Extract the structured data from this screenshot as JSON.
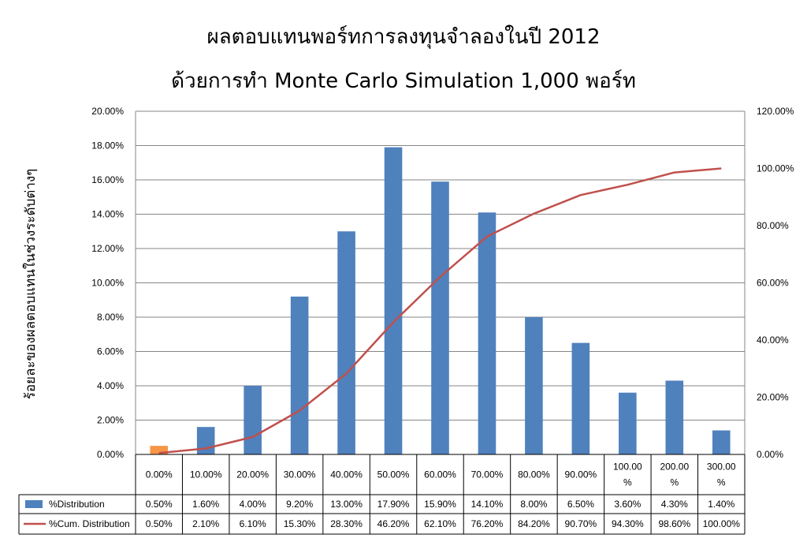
{
  "title_line1": "ผลตอบแทนพอร์ทการลงทุนจำลองในปี 2012",
  "title_line2": "ด้วยการทำ Monte Carlo Simulation 1,000 พอร์ท",
  "chart_data": {
    "type": "bar",
    "ylabel": "ร้อยละของผลตอบแทนในช่วงระดับต่างๆ",
    "categories": [
      "0.00%",
      "10.00%",
      "20.00%",
      "30.00%",
      "40.00%",
      "50.00%",
      "60.00%",
      "70.00%",
      "80.00%",
      "90.00%",
      "100.00 %",
      "200.00 %",
      "300.00 %"
    ],
    "categories_display": [
      [
        "0.00%"
      ],
      [
        "10.00%"
      ],
      [
        "20.00%"
      ],
      [
        "30.00%"
      ],
      [
        "40.00%"
      ],
      [
        "50.00%"
      ],
      [
        "60.00%"
      ],
      [
        "70.00%"
      ],
      [
        "80.00%"
      ],
      [
        "90.00%"
      ],
      [
        "100.00",
        "%"
      ],
      [
        "200.00",
        "%"
      ],
      [
        "300.00",
        "%"
      ]
    ],
    "series": [
      {
        "name": "%Distribution",
        "kind": "bar",
        "axis": "left",
        "color": "#4F81BD",
        "highlight_color": "#F79646",
        "highlight_index": 0,
        "values": [
          0.5,
          1.6,
          4.0,
          9.2,
          13.0,
          17.9,
          15.9,
          14.1,
          8.0,
          6.5,
          3.6,
          4.3,
          1.4
        ],
        "labels": [
          "0.50%",
          "1.60%",
          "4.00%",
          "9.20%",
          "13.00%",
          "17.90%",
          "15.90%",
          "14.10%",
          "8.00%",
          "6.50%",
          "3.60%",
          "4.30%",
          "1.40%"
        ]
      },
      {
        "name": "%Cum. Distribution",
        "kind": "line",
        "axis": "right",
        "color": "#C0504D",
        "values": [
          0.5,
          2.1,
          6.1,
          15.3,
          28.3,
          46.2,
          62.1,
          76.2,
          84.2,
          90.7,
          94.3,
          98.6,
          100.0
        ],
        "labels": [
          "0.50%",
          "2.10%",
          "6.10%",
          "15.30%",
          "28.30%",
          "46.20%",
          "62.10%",
          "76.20%",
          "84.20%",
          "90.70%",
          "94.30%",
          "98.60%",
          "100.00%"
        ]
      }
    ],
    "y_left": {
      "min": 0,
      "max": 20,
      "step": 2,
      "ticks": [
        "0.00%",
        "2.00%",
        "4.00%",
        "6.00%",
        "8.00%",
        "10.00%",
        "12.00%",
        "14.00%",
        "16.00%",
        "18.00%",
        "20.00%"
      ]
    },
    "y_right": {
      "min": 0,
      "max": 120,
      "step": 20,
      "ticks": [
        "0.00%",
        "20.00%",
        "40.00%",
        "60.00%",
        "80.00%",
        "100.00%",
        "120.00%"
      ]
    },
    "grid": true,
    "legend": "data-table"
  }
}
